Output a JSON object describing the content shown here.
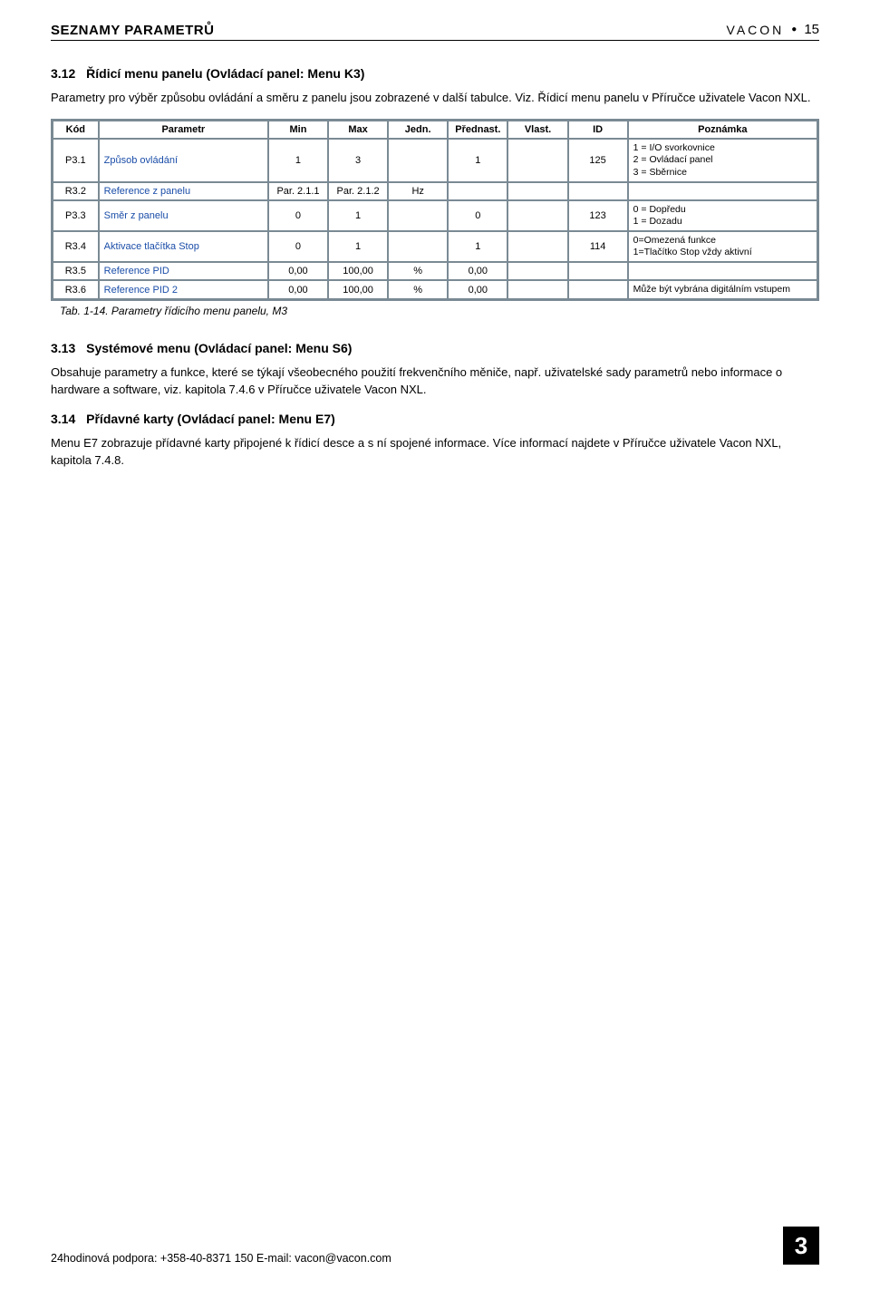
{
  "header": {
    "left": "SEZNAMY PARAMETRŮ",
    "brand": "VACON",
    "bullet": "●",
    "pagenum": "15"
  },
  "sections": {
    "s312": {
      "num": "3.12",
      "title": "Řídicí menu panelu (Ovládací panel: Menu K3)",
      "para": "Parametry pro výběr způsobu ovládání a směru z panelu jsou zobrazené v další tabulce. Viz. Řídicí menu panelu v Příručce uživatele Vacon NXL."
    },
    "s313": {
      "num": "3.13",
      "title": "Systémové menu (Ovládací panel: Menu S6)",
      "para": "Obsahuje parametry a funkce, které se týkají všeobecného použití frekvenčního měniče, např. uživatelské sady parametrů nebo informace o hardware a software, viz. kapitola 7.4.6 v Příručce uživatele Vacon NXL."
    },
    "s314": {
      "num": "3.14",
      "title": "Přídavné karty (Ovládací panel: Menu E7)",
      "para": "Menu E7 zobrazuje přídavné karty připojené k řídicí desce a s ní spojené informace. Více informací najdete v Příručce uživatele Vacon NXL, kapitola 7.4.8."
    }
  },
  "table": {
    "headers": {
      "kod": "Kód",
      "param": "Parametr",
      "min": "Min",
      "max": "Max",
      "jedn": "Jedn.",
      "predn": "Přednast.",
      "vlast": "Vlast.",
      "id": "ID",
      "pozn": "Poznámka"
    },
    "rows": [
      {
        "kod": "P3.1",
        "name": "Způsob ovládání",
        "min": "1",
        "max": "3",
        "jedn": "",
        "predn": "1",
        "vlast": "",
        "id": "125",
        "note": "1 = I/O svorkovnice\n2 = Ovládací panel\n3 = Sběrnice"
      },
      {
        "kod": "R3.2",
        "name": "Reference z panelu",
        "min": "Par. 2.1.1",
        "max": "Par. 2.1.2",
        "jedn": "Hz",
        "predn": "",
        "vlast": "",
        "id": "",
        "note": ""
      },
      {
        "kod": "P3.3",
        "name": "Směr z panelu",
        "min": "0",
        "max": "1",
        "jedn": "",
        "predn": "0",
        "vlast": "",
        "id": "123",
        "note": "0 = Dopředu\n1 = Dozadu"
      },
      {
        "kod": "R3.4",
        "name": "Aktivace tlačítka Stop",
        "min": "0",
        "max": "1",
        "jedn": "",
        "predn": "1",
        "vlast": "",
        "id": "114",
        "note": "0=Omezená funkce\n1=Tlačítko Stop vždy aktivní"
      },
      {
        "kod": "R3.5",
        "name": "Reference PID",
        "min": "0,00",
        "max": "100,00",
        "jedn": "%",
        "predn": "0,00",
        "vlast": "",
        "id": "",
        "note": ""
      },
      {
        "kod": "R3.6",
        "name": "Reference PID 2",
        "min": "0,00",
        "max": "100,00",
        "jedn": "%",
        "predn": "0,00",
        "vlast": "",
        "id": "",
        "note": "Může být vybrána digitálním vstupem"
      }
    ],
    "caption": "Tab. 1-14. Parametry řídicího menu panelu, M3"
  },
  "footer": {
    "support": "24hodinová podpora: +358-40-8371 150 E-mail: vacon@vacon.com",
    "chapter": "3"
  },
  "colors": {
    "link": "#1a4da8",
    "table_border": "#7a8a94"
  }
}
